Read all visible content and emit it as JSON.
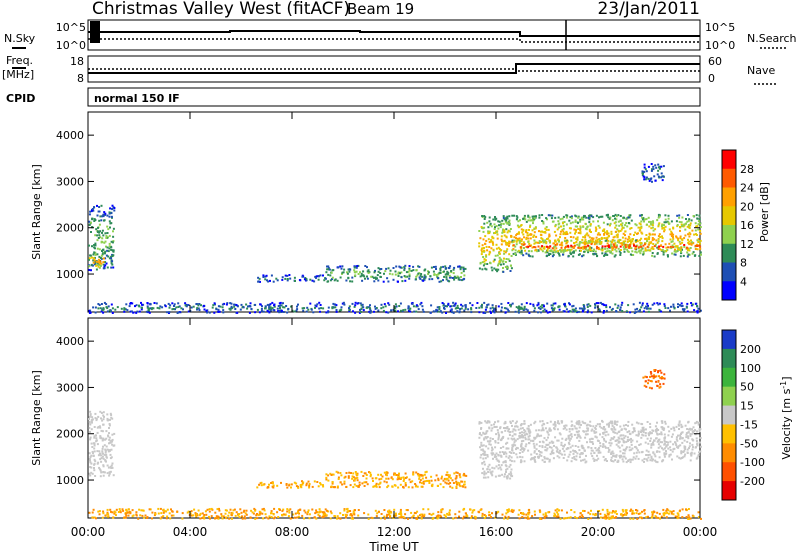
{
  "header": {
    "station": "Christmas Valley West (fitACF)",
    "beam": "Beam 19",
    "date": "23/Jan/2011"
  },
  "top_panels": {
    "nsky_label": "N.Sky",
    "nsky_ticks": [
      "10^5",
      "10^0"
    ],
    "nsearch_label": "N.Search",
    "freq_label": "Freq.",
    "freq_unit": "[MHz]",
    "freq_ticks": [
      "18",
      "8"
    ],
    "nave_label": "Nave",
    "nave_ticks": [
      "60",
      "0"
    ],
    "cpid_label": "CPID",
    "cpid_value": "normal 150 IF"
  },
  "x_axis": {
    "label": "Time UT",
    "ticks": [
      "00:00",
      "04:00",
      "08:00",
      "12:00",
      "16:00",
      "20:00",
      "00:00"
    ]
  },
  "power_colorbar": {
    "label": "Power [dB]",
    "ticks": [
      "28",
      "24",
      "20",
      "16",
      "12",
      "8",
      "4"
    ],
    "colors": [
      "#ff0000",
      "#ff5a00",
      "#ffa000",
      "#e6c800",
      "#8fd14f",
      "#2e8b57",
      "#1e4fb4",
      "#0000ff"
    ]
  },
  "velocity_colorbar": {
    "label": "Velocity [m s^-1]",
    "ticks": [
      "200",
      "100",
      "50",
      "15",
      "-15",
      "-50",
      "-100",
      "-200"
    ],
    "colors": [
      "#1a3cc8",
      "#2e8b57",
      "#3cb43c",
      "#8fd14f",
      "#c8c8c8",
      "#ffc000",
      "#ff8c00",
      "#ff5000",
      "#e60000"
    ]
  },
  "chart_data": [
    {
      "type": "heatmap",
      "title": "Power",
      "xlabel": "Time UT",
      "ylabel": "Slant Range [km]",
      "xlim_hours": [
        0,
        24
      ],
      "ylim_km": [
        180,
        4500
      ],
      "yticks": [
        1000,
        2000,
        3000,
        4000
      ],
      "features": [
        {
          "t0": 0.0,
          "t1": 1.0,
          "r0": 1100,
          "r1": 2500,
          "level_db": 12
        },
        {
          "t0": 0.0,
          "t1": 0.6,
          "r0": 1150,
          "r1": 1450,
          "level_db": 24
        },
        {
          "t0": 6.6,
          "t1": 9.3,
          "r0": 850,
          "r1": 1000,
          "level_db": 8
        },
        {
          "t0": 9.3,
          "t1": 14.8,
          "r0": 850,
          "r1": 1200,
          "level_db": 12
        },
        {
          "t0": 15.3,
          "t1": 16.6,
          "r0": 1050,
          "r1": 2300,
          "level_db": 20
        },
        {
          "t0": 16.6,
          "t1": 24.0,
          "r0": 1400,
          "r1": 2300,
          "level_db": 20
        },
        {
          "t0": 16.6,
          "t1": 24.0,
          "r0": 1500,
          "r1": 1750,
          "level_db": 28
        },
        {
          "t0": 21.7,
          "t1": 22.6,
          "r0": 3000,
          "r1": 3400,
          "level_db": 8
        },
        {
          "t0": 0.0,
          "t1": 24.0,
          "r0": 180,
          "r1": 400,
          "level_db": 8
        }
      ]
    },
    {
      "type": "heatmap",
      "title": "Velocity",
      "xlabel": "Time UT",
      "ylabel": "Slant Range [km]",
      "xlim_hours": [
        0,
        24
      ],
      "ylim_km": [
        180,
        4500
      ],
      "yticks": [
        1000,
        2000,
        3000,
        4000
      ],
      "features": [
        {
          "t0": 0.0,
          "t1": 1.0,
          "r0": 1100,
          "r1": 2500,
          "velocity": 0
        },
        {
          "t0": 6.6,
          "t1": 9.3,
          "r0": 850,
          "r1": 1000,
          "velocity": -50
        },
        {
          "t0": 9.3,
          "t1": 14.8,
          "r0": 850,
          "r1": 1200,
          "velocity": -50
        },
        {
          "t0": 15.3,
          "t1": 16.6,
          "r0": 1050,
          "r1": 2300,
          "velocity": 0
        },
        {
          "t0": 16.6,
          "t1": 24.0,
          "r0": 1400,
          "r1": 2300,
          "velocity": 0
        },
        {
          "t0": 21.7,
          "t1": 22.6,
          "r0": 3000,
          "r1": 3400,
          "velocity": -100
        },
        {
          "t0": 0.0,
          "t1": 24.0,
          "r0": 180,
          "r1": 400,
          "velocity": -50
        }
      ]
    }
  ]
}
